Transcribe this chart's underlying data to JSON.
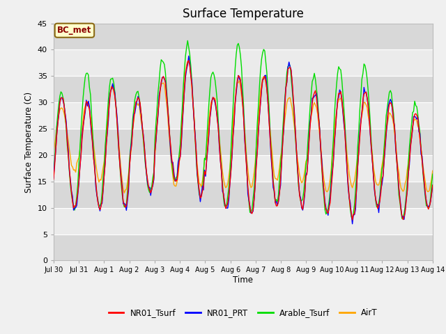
{
  "title": "Surface Temperature",
  "ylabel": "Surface Temperature (C)",
  "xlabel": "Time",
  "annotation": "BC_met",
  "ylim": [
    0,
    45
  ],
  "yticks": [
    0,
    5,
    10,
    15,
    20,
    25,
    30,
    35,
    40,
    45
  ],
  "series_colors": {
    "NR01_Tsurf": "#ff0000",
    "NR01_PRT": "#0000ff",
    "Arable_Tsurf": "#00dd00",
    "AirT": "#ffa500"
  },
  "x_tick_labels": [
    "Jul 30",
    "Jul 31",
    "Aug 1",
    "Aug 2",
    "Aug 3",
    "Aug 4",
    "Aug 5",
    "Aug 6",
    "Aug 7",
    "Aug 8",
    "Aug 9",
    "Aug 10",
    "Aug 11",
    "Aug 12",
    "Aug 13",
    "Aug 14"
  ],
  "linewidth": 1.0,
  "fig_bg": "#f0f0f0",
  "plot_bg_light": "#ebebeb",
  "plot_bg_dark": "#d8d8d8",
  "grid_color": "#ffffff",
  "annotation_facecolor": "#ffffcc",
  "annotation_edgecolor": "#8b6914",
  "annotation_textcolor": "#8b0000"
}
